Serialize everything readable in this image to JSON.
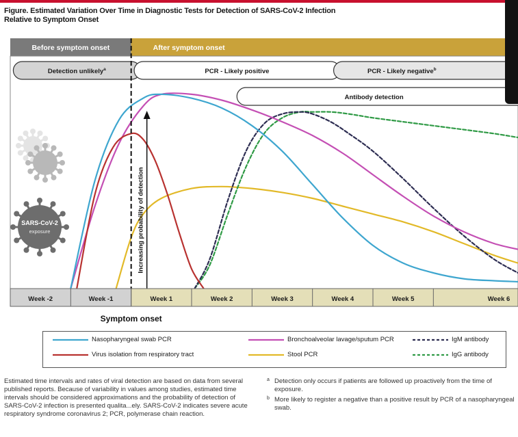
{
  "figure": {
    "title_line1": "Figure. Estimated Variation Over Time in Diagnostic Tests for Detection of SARS-CoV-2 Infection",
    "title_line2": "Relative to Symptom Onset"
  },
  "colors": {
    "accent": "#c8102e",
    "phase_before_bg": "#7a7a7a",
    "phase_after_bg": "#c9a23a",
    "nasopharyngeal": "#3ea6cf",
    "virus_isolation": "#b83230",
    "bronchoalveolar": "#c44fb4",
    "stool": "#e2b928",
    "igm": "#2d2d52",
    "igg": "#2f9a45"
  },
  "chart_data": {
    "type": "line",
    "title": "Estimated Variation Over Time in Diagnostic Tests for Detection of SARS-CoV-2 Infection Relative to Symptom Onset",
    "xlabel": "Symptom onset",
    "ylabel": "Increasing probability of detection",
    "x_unit": "weeks relative to symptom onset",
    "xlim": [
      -2,
      6.4
    ],
    "ylim": [
      0,
      1
    ],
    "categories": [
      "Week -2",
      "Week -1",
      "Week 1",
      "Week 2",
      "Week 3",
      "Week 4",
      "Week 5",
      "Week 6"
    ],
    "phases": [
      {
        "label": "Before symptom onset",
        "range": [
          -2,
          0
        ]
      },
      {
        "label": "After symptom onset",
        "range": [
          0,
          6.4
        ]
      }
    ],
    "intervals": [
      {
        "label": "Detection unlikely",
        "note": "a",
        "range": [
          -1.95,
          -0.05
        ]
      },
      {
        "label": "PCR - Likely positive",
        "note": "",
        "range": [
          0.05,
          3.25
        ]
      },
      {
        "label": "PCR - Likely negative",
        "note": "b",
        "range": [
          3.35,
          6.4
        ]
      },
      {
        "label": "Antibody detection",
        "note": "",
        "range": [
          1.75,
          6.4
        ]
      }
    ],
    "exposure_label": "SARS-CoV-2 exposure",
    "series": [
      {
        "name": "Nasopharyngeal swab PCR",
        "color_key": "nasopharyngeal",
        "style": "solid",
        "x": [
          -1.0,
          -0.6,
          -0.2,
          0.2,
          0.5,
          1.0,
          1.5,
          2.0,
          2.5,
          3.0,
          3.5,
          4.0,
          4.5,
          5.0,
          5.5,
          6.0,
          6.4
        ],
        "y": [
          0.0,
          0.55,
          0.86,
          0.97,
          0.99,
          0.97,
          0.92,
          0.83,
          0.7,
          0.53,
          0.36,
          0.22,
          0.13,
          0.08,
          0.05,
          0.04,
          0.035
        ]
      },
      {
        "name": "Virus isolation from respiratory tract",
        "color_key": "virus_isolation",
        "style": "solid",
        "x": [
          -0.9,
          -0.6,
          -0.3,
          0.0,
          0.2,
          0.4,
          0.6,
          0.8,
          1.0,
          1.2
        ],
        "y": [
          0.0,
          0.48,
          0.72,
          0.79,
          0.76,
          0.65,
          0.48,
          0.28,
          0.1,
          0.0
        ]
      },
      {
        "name": "Bronchoalveolar lavage/sputum PCR",
        "color_key": "bronchoalveolar",
        "style": "solid",
        "x": [
          -1.0,
          -0.6,
          -0.2,
          0.2,
          0.5,
          1.0,
          1.5,
          2.0,
          2.5,
          3.0,
          3.5,
          4.0,
          4.5,
          5.0,
          5.5,
          6.0,
          6.4
        ],
        "y": [
          0.0,
          0.42,
          0.74,
          0.93,
          0.99,
          0.99,
          0.96,
          0.91,
          0.85,
          0.78,
          0.69,
          0.58,
          0.47,
          0.37,
          0.29,
          0.23,
          0.2
        ]
      },
      {
        "name": "Stool PCR",
        "color_key": "stool",
        "style": "solid",
        "x": [
          -0.25,
          0.0,
          0.2,
          0.5,
          1.0,
          1.5,
          2.0,
          2.5,
          3.0,
          3.5,
          4.0,
          4.5,
          5.0,
          5.5,
          6.0,
          6.4
        ],
        "y": [
          0.0,
          0.26,
          0.38,
          0.46,
          0.51,
          0.52,
          0.51,
          0.49,
          0.46,
          0.42,
          0.38,
          0.34,
          0.29,
          0.23,
          0.17,
          0.13
        ]
      },
      {
        "name": "IgM antibody",
        "color_key": "igm",
        "style": "dashed",
        "x": [
          1.05,
          1.3,
          1.6,
          1.9,
          2.2,
          2.5,
          2.8,
          3.0,
          3.3,
          3.6,
          4.0,
          4.5,
          5.0,
          5.5,
          6.0,
          6.4
        ],
        "y": [
          0.0,
          0.15,
          0.45,
          0.7,
          0.84,
          0.89,
          0.9,
          0.89,
          0.85,
          0.79,
          0.7,
          0.56,
          0.41,
          0.27,
          0.15,
          0.08
        ]
      },
      {
        "name": "IgG antibody",
        "color_key": "igg",
        "style": "dashed",
        "x": [
          1.05,
          1.3,
          1.6,
          1.9,
          2.2,
          2.5,
          2.8,
          3.0,
          3.3,
          3.6,
          4.0,
          4.5,
          5.0,
          5.5,
          6.0,
          6.4
        ],
        "y": [
          0.0,
          0.12,
          0.38,
          0.62,
          0.79,
          0.87,
          0.9,
          0.9,
          0.9,
          0.89,
          0.87,
          0.85,
          0.83,
          0.81,
          0.79,
          0.77
        ]
      }
    ]
  },
  "legend": {
    "items": [
      {
        "label": "Nasopharyngeal swab PCR",
        "color_key": "nasopharyngeal",
        "style": "solid"
      },
      {
        "label": "Bronchoalveolar lavage/sputum PCR",
        "color_key": "bronchoalveolar",
        "style": "solid"
      },
      {
        "label": "IgM antibody",
        "color_key": "igm",
        "style": "dashed"
      },
      {
        "label": "Virus isolation from respiratory tract",
        "color_key": "virus_isolation",
        "style": "solid"
      },
      {
        "label": "Stool PCR",
        "color_key": "stool",
        "style": "solid"
      },
      {
        "label": "IgG antibody",
        "color_key": "igg",
        "style": "dashed"
      }
    ]
  },
  "notes": {
    "left": "Estimated time intervals and rates of viral detection are based on data from several published reports. Because of variability in values among studies, estimated time intervals should be considered approximations and the probability of detection of SARS-CoV-2 infection is presented qualita...ely. SARS-CoV-2 indicates severe acute respiratory syndrome coronavirus 2; PCR, polymerase chain reaction.",
    "footnote_a_marker": "a",
    "footnote_a": "Detection only occurs if patients are followed up proactively from the time of exposure.",
    "footnote_b_marker": "b",
    "footnote_b": "More likely to register a negative than a positive result by PCR of a nasopharyngeal swab."
  }
}
